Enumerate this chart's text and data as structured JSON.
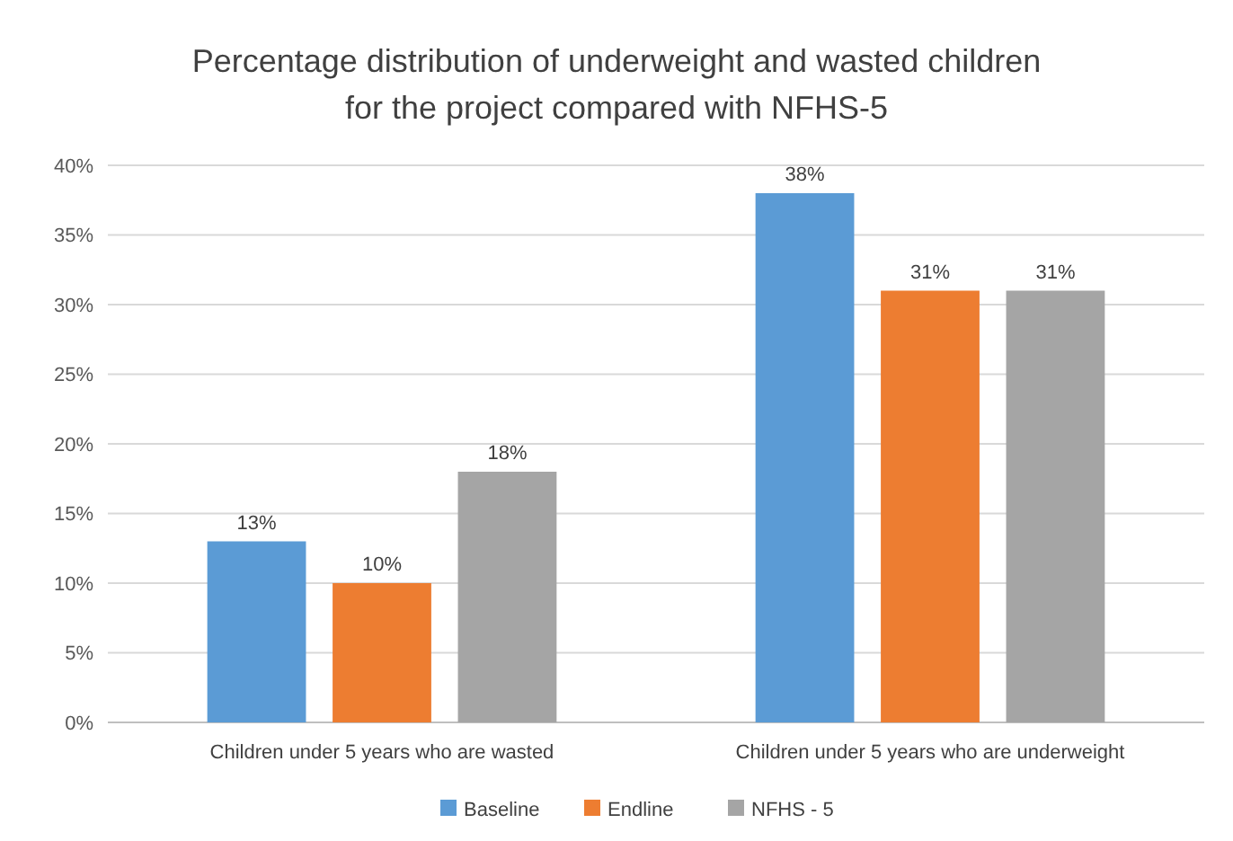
{
  "chart_data": {
    "type": "bar",
    "title": "Percentage distribution  of underweight and wasted children\nfor the project compared with NFHS-5",
    "categories": [
      "Children under 5 years who are wasted",
      "Children under 5 years who are underweight"
    ],
    "series": [
      {
        "name": "Baseline",
        "color": "#5b9bd5",
        "values": [
          13,
          38
        ],
        "value_labels": [
          "13%",
          "38%"
        ]
      },
      {
        "name": "Endline",
        "color": "#ed7d31",
        "values": [
          10,
          31
        ],
        "value_labels": [
          "10%",
          "31%"
        ]
      },
      {
        "name": "NFHS - 5",
        "color": "#a5a5a5",
        "values": [
          18,
          31
        ],
        "value_labels": [
          "18%",
          "31%"
        ]
      }
    ],
    "ylim": [
      0,
      40
    ],
    "yticks": [
      {
        "value": 0,
        "label": "0%"
      },
      {
        "value": 5,
        "label": "5%"
      },
      {
        "value": 10,
        "label": "10%"
      },
      {
        "value": 15,
        "label": "15%"
      },
      {
        "value": 20,
        "label": "20%"
      },
      {
        "value": 25,
        "label": "25%"
      },
      {
        "value": 30,
        "label": "30%"
      },
      {
        "value": 35,
        "label": "35%"
      },
      {
        "value": 40,
        "label": "40%"
      }
    ],
    "grid": "y",
    "legend": "bottom"
  }
}
